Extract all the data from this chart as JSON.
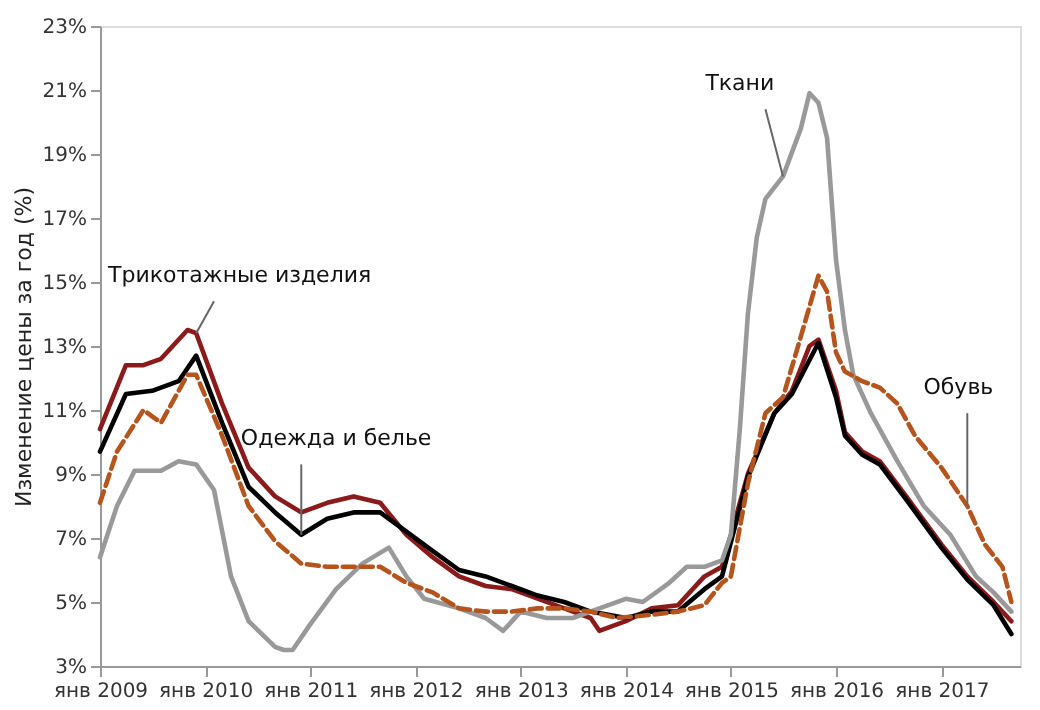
{
  "chart_data": {
    "type": "line",
    "ylabel": "Изменение  цены за год (%)",
    "xlim": [
      "2009-01",
      "2017-10"
    ],
    "ylim": [
      3,
      23
    ],
    "yticks": [
      {
        "value": 3,
        "label": "3%"
      },
      {
        "value": 5,
        "label": "5%"
      },
      {
        "value": 7,
        "label": "7%"
      },
      {
        "value": 9,
        "label": "9%"
      },
      {
        "value": 11,
        "label": "11%"
      },
      {
        "value": 13,
        "label": "13%"
      },
      {
        "value": 15,
        "label": "15%"
      },
      {
        "value": 17,
        "label": "17%"
      },
      {
        "value": 19,
        "label": "19%"
      },
      {
        "value": 21,
        "label": "21%"
      },
      {
        "value": 23,
        "label": "23%"
      }
    ],
    "xticks": [
      {
        "value": "2009-01",
        "label": "янв 2009"
      },
      {
        "value": "2010-01",
        "label": "янв 2010"
      },
      {
        "value": "2011-01",
        "label": "янв 2011"
      },
      {
        "value": "2012-01",
        "label": "янв 2012"
      },
      {
        "value": "2013-01",
        "label": "янв 2013"
      },
      {
        "value": "2014-01",
        "label": "янв 2014"
      },
      {
        "value": "2015-01",
        "label": "янв 2015"
      },
      {
        "value": "2016-01",
        "label": "янв 2016"
      },
      {
        "value": "2017-01",
        "label": "янв 2017"
      }
    ],
    "grid": false,
    "legend": false,
    "marker": "none",
    "series": [
      {
        "name": "Трикотажные изделия",
        "color": "#8b1a1a",
        "line_style": "solid",
        "x": [
          "2009-01",
          "2009-04",
          "2009-06",
          "2009-08",
          "2009-11",
          "2009-12",
          "2010-03",
          "2010-06",
          "2010-09",
          "2010-12",
          "2011-03",
          "2011-06",
          "2011-09",
          "2011-12",
          "2012-03",
          "2012-06",
          "2012-09",
          "2012-12",
          "2013-06",
          "2013-09",
          "2013-10",
          "2014-01",
          "2014-04",
          "2014-07",
          "2014-10",
          "2014-12",
          "2015-03",
          "2015-06",
          "2015-08",
          "2015-10",
          "2015-11",
          "2016-01",
          "2016-02",
          "2016-04",
          "2016-06",
          "2016-09",
          "2017-01",
          "2017-04",
          "2017-07",
          "2017-09"
        ],
        "values": [
          10.4,
          12.4,
          12.4,
          12.6,
          13.5,
          13.4,
          11.2,
          9.2,
          8.3,
          7.8,
          8.1,
          8.3,
          8.1,
          7.1,
          6.4,
          5.8,
          5.5,
          5.4,
          4.8,
          4.5,
          4.1,
          4.4,
          4.8,
          4.9,
          5.8,
          6.1,
          9.0,
          10.9,
          11.6,
          13.0,
          13.2,
          11.6,
          10.3,
          9.7,
          9.4,
          8.3,
          6.8,
          5.8,
          5.0,
          4.4
        ]
      },
      {
        "name": "Одежда и белье",
        "color": "#000000",
        "line_style": "solid",
        "x": [
          "2009-01",
          "2009-04",
          "2009-07",
          "2009-10",
          "2009-12",
          "2010-03",
          "2010-06",
          "2010-09",
          "2010-12",
          "2011-03",
          "2011-06",
          "2011-09",
          "2011-12",
          "2012-03",
          "2012-06",
          "2012-09",
          "2012-12",
          "2013-03",
          "2013-06",
          "2013-09",
          "2014-01",
          "2014-04",
          "2014-07",
          "2014-10",
          "2014-12",
          "2015-03",
          "2015-06",
          "2015-08",
          "2015-11",
          "2016-01",
          "2016-02",
          "2016-04",
          "2016-06",
          "2016-09",
          "2017-01",
          "2017-04",
          "2017-07",
          "2017-09"
        ],
        "values": [
          9.7,
          11.5,
          11.6,
          11.9,
          12.7,
          10.6,
          8.6,
          7.8,
          7.1,
          7.6,
          7.8,
          7.8,
          7.2,
          6.6,
          6.0,
          5.8,
          5.5,
          5.2,
          5.0,
          4.7,
          4.5,
          4.7,
          4.7,
          5.4,
          5.8,
          8.9,
          10.9,
          11.5,
          13.1,
          11.4,
          10.2,
          9.6,
          9.3,
          8.2,
          6.7,
          5.7,
          4.9,
          4.0
        ]
      },
      {
        "name": "Ткани",
        "color": "#999999",
        "line_style": "solid",
        "x": [
          "2009-01",
          "2009-03",
          "2009-05",
          "2009-08",
          "2009-10",
          "2009-12",
          "2010-02",
          "2010-04",
          "2010-06",
          "2010-09",
          "2010-10",
          "2010-11",
          "2011-01",
          "2011-04",
          "2011-07",
          "2011-10",
          "2011-12",
          "2012-02",
          "2012-06",
          "2012-09",
          "2012-11",
          "2013-01",
          "2013-04",
          "2013-07",
          "2013-10",
          "2014-01",
          "2014-03",
          "2014-06",
          "2014-08",
          "2014-10",
          "2014-12",
          "2015-01",
          "2015-02",
          "2015-03",
          "2015-04",
          "2015-05",
          "2015-07",
          "2015-09",
          "2015-10",
          "2015-11",
          "2015-12",
          "2016-01",
          "2016-02",
          "2016-03",
          "2016-05",
          "2016-08",
          "2016-11",
          "2017-02",
          "2017-05",
          "2017-07",
          "2017-09"
        ],
        "values": [
          6.4,
          8.0,
          9.1,
          9.1,
          9.4,
          9.3,
          8.5,
          5.8,
          4.4,
          3.6,
          3.5,
          3.5,
          4.3,
          5.4,
          6.2,
          6.7,
          5.8,
          5.1,
          4.8,
          4.5,
          4.1,
          4.7,
          4.5,
          4.5,
          4.8,
          5.1,
          5.0,
          5.6,
          6.1,
          6.1,
          6.3,
          7.1,
          10.4,
          14.0,
          16.4,
          17.6,
          18.3,
          19.8,
          20.9,
          20.6,
          19.5,
          15.7,
          13.5,
          12.1,
          10.9,
          9.4,
          8.0,
          7.1,
          5.8,
          5.3,
          4.7
        ]
      },
      {
        "name": "Обувь",
        "color": "#b5541c",
        "line_style": "dashed",
        "x": [
          "2009-01",
          "2009-03",
          "2009-06",
          "2009-08",
          "2009-11",
          "2009-12",
          "2010-03",
          "2010-06",
          "2010-09",
          "2010-12",
          "2011-03",
          "2011-06",
          "2011-09",
          "2011-12",
          "2012-03",
          "2012-06",
          "2012-09",
          "2012-12",
          "2013-03",
          "2013-06",
          "2013-09",
          "2013-12",
          "2014-04",
          "2014-07",
          "2014-10",
          "2014-12",
          "2015-01",
          "2015-03",
          "2015-05",
          "2015-07",
          "2015-09",
          "2015-11",
          "2015-12",
          "2016-01",
          "2016-02",
          "2016-04",
          "2016-06",
          "2016-08",
          "2016-10",
          "2017-01",
          "2017-04",
          "2017-06",
          "2017-08",
          "2017-09"
        ],
        "values": [
          8.1,
          9.7,
          11.0,
          10.6,
          12.1,
          12.1,
          10.2,
          8.0,
          6.9,
          6.2,
          6.1,
          6.1,
          6.1,
          5.6,
          5.3,
          4.8,
          4.7,
          4.7,
          4.8,
          4.8,
          4.7,
          4.5,
          4.6,
          4.7,
          4.9,
          5.6,
          5.8,
          8.7,
          10.9,
          11.4,
          13.3,
          15.2,
          14.7,
          12.8,
          12.2,
          11.9,
          11.7,
          11.2,
          10.2,
          9.2,
          8.0,
          6.8,
          6.1,
          5.0
        ]
      }
    ]
  }
}
